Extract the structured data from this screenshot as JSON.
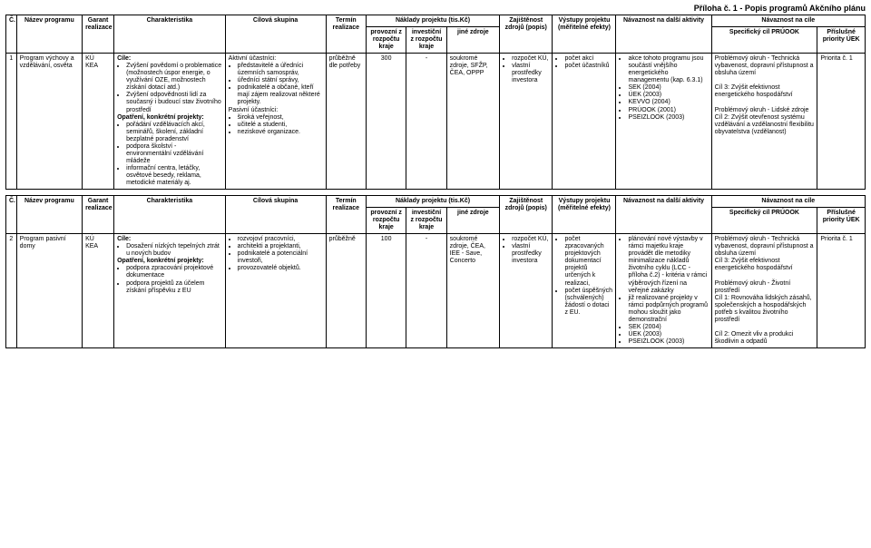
{
  "pageTitle": "Příloha č. 1 - Popis programů Akčního plánu",
  "tableHead": {
    "c": "Č.",
    "nazev": "Název programu",
    "garant": "Garant realizace",
    "charakteristika": "Charakteristika",
    "cilova": "Cílová skupina",
    "termin": "Termín realizace",
    "naklady": "Náklady projektu (tis.Kč)",
    "provozni": "provozní z rozpočtu kraje",
    "investicni": "investiční z rozpočtu kraje",
    "jine": "jiné zdroje",
    "zajistenost": "Zajištěnost zdrojů (popis)",
    "vystupy": "Výstupy projektu (měřitelné efekty)",
    "navaznost": "Návaznost na další aktivity",
    "navCile": "Návaznost na cíle",
    "specCil": "Specifický cíl PRÚOOK",
    "priority": "Příslušné priority ÚEK"
  },
  "rows": [
    {
      "c": "1",
      "nazev": "Program výchovy a vzdělávání, osvěta",
      "garant": "KÚ\nKEA",
      "charakteristika": "<b>Cíle:</b><ul><li>Zvýšení povědomí o problematice (možnostech úspor energie, o využívání OZE, možnostech získání dotací atd.)</li><li>Zvýšení odpovědnosti lidí za současný i budoucí stav životního prostředí</li></ul><b>Opatření, konkrétní projekty:</b><ul><li>pořádání vzdělávacích akcí, seminářů, školení, základní bezplatné poradenství</li><li>podpora školství - environmentální vzdělávání mládeže</li><li>informační centra, letáčky, osvětové besedy, reklama, metodické materiály aj.</li></ul>",
      "cilova": "Aktivní účastníci:<ul><li>představitelé a úředníci územních samospráv,</li><li>úředníci státní správy,</li><li>podnikatelé a občané, kteří mají zájem realizovat některé projekty.</li></ul>Pasivní účastníci:<ul><li>široká veřejnost,</li><li>učitelé a studenti,</li><li>neziskové organizace.</li></ul>",
      "termin": "průběžně dle potřeby",
      "provozni": "300",
      "investicni": "-",
      "jine": "soukromé zdroje, SFŽP, ČEA, OPPP",
      "zajistenost": "<ul><li>rozpočet KÚ,</li><li>vlastní prostředky investora</li></ul>",
      "vystupy": "<ul><li>počet akcí</li><li>počet účastníků</li></ul>",
      "navaznost": "<ul><li>akce tohoto programu jsou součástí vnějšího energetického managementu (kap. 6.3.1)</li><li>SEK (2004)</li><li>ÚEK (2003)</li><li>KEVVO (2004)</li><li>PRÚOOK (2001)</li><li>PSEIZLOOK (2003)</li></ul>",
      "specCil": "Problémový okruh - Technická vybavenost, dopravní přístupnost a obsluha území<br><br>Cíl 3: Zvýšit efektivnost energetického hospodářství<br><br>Problémový okruh - Lidské zdroje<br>Cíl 2: Zvýšit otevřenost systému vzdělávání a vzdělanostní flexibilitu obyvatelstva (vzdělanost)",
      "priority": "Priorita č. 1"
    },
    {
      "c": "2",
      "nazev": "Program pasivní domy",
      "garant": "KÚ\nKEA",
      "charakteristika": "<b>Cíle:</b><ul><li>Dosažení nízkých tepelných ztrát u nových budov</li></ul><b>Opatření, konkrétní projekty:</b><ul><li>podpora zpracování projektové dokumentace</li><li>podpora projektů za účelem získání příspěvku z EU</li></ul>",
      "cilova": "<ul><li>rozvojoví pracovníci,</li><li>architekti a projektanti,</li><li>podnikatelé a potenciální investoři,</li><li>provozovatelé objektů.</li></ul>",
      "termin": "průběžně",
      "provozni": "100",
      "investicni": "-",
      "jine": "soukromé zdroje, ČEA, IEE - Save, Concerto",
      "zajistenost": "<ul><li>rozpočet KÚ,</li><li>vlastní prostředky investora</li></ul>",
      "vystupy": "<ul><li>počet zpracovaných projektových dokumentací projektů určených k realizaci,</li><li>počet úspěšných (schválených) žádostí o dotaci z EU.</li></ul>",
      "navaznost": "<ul><li>plánování nové výstavby v rámci majetku kraje provádět dle metodiky minimalizace nákladů životního cyklu (LCC - příloha č.2) - kritéria v rámci výběrových řízení na veřejné zakázky</li><li>již realizované projekty v rámci podpůrných programů mohou sloužit jako demonstrační</li><li>SEK (2004)</li><li>ÚEK (2003)</li><li>PSEIZLOOK (2003)</li></ul>",
      "specCil": "Problémový okruh - Technická vybavenost, dopravní přístupnost a obsluha území<br>Cíl 3: Zvýšit efektivnost energetického hospodářství<br><br>Problémový okruh - Životní prostředí<br>Cíl 1: Rovnováha lidských zásahů, společenských a hospodářských potřeb s kvalitou životního prostředí<br><br>Cíl 2: Omezit vliv a produkci škodlivin a odpadů",
      "priority": "Priorita č. 1"
    }
  ]
}
